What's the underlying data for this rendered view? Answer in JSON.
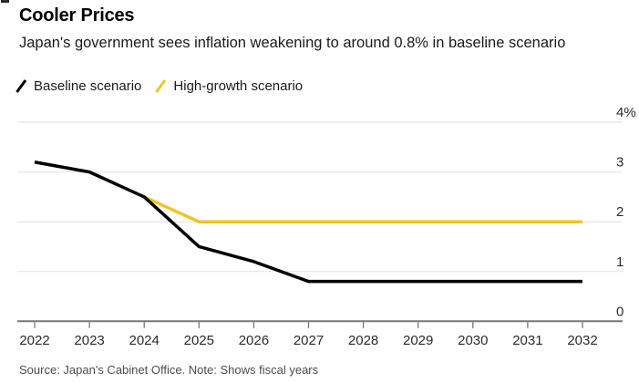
{
  "chart_data": {
    "type": "line",
    "title": "Cooler Prices",
    "subtitle": "Japan's government sees inflation weakening to around 0.8% in baseline scenario",
    "source_note": "Source: Japan's Cabinet Office. Note: Shows fiscal years",
    "unit": "%",
    "grid": "horizontal",
    "legend_position": "top-left",
    "xlim": [
      2022,
      2032
    ],
    "ylim": [
      0,
      4
    ],
    "x_ticks": [
      2022,
      2023,
      2024,
      2025,
      2026,
      2027,
      2028,
      2029,
      2030,
      2031,
      2032
    ],
    "y_ticks": [
      {
        "value": 0,
        "label": "0"
      },
      {
        "value": 1,
        "label": "1"
      },
      {
        "value": 2,
        "label": "2"
      },
      {
        "value": 3,
        "label": "3"
      },
      {
        "value": 4,
        "label": "4%"
      }
    ],
    "series": [
      {
        "id": "baseline",
        "name": "Baseline scenario",
        "color": "#000000",
        "x": [
          2022,
          2023,
          2024,
          2025,
          2026,
          2027,
          2028,
          2029,
          2030,
          2031,
          2032
        ],
        "values": [
          3.2,
          3.0,
          2.5,
          1.5,
          1.2,
          0.8,
          0.8,
          0.8,
          0.8,
          0.8,
          0.8
        ]
      },
      {
        "id": "high-growth",
        "name": "High-growth scenario",
        "color": "#f3c41f",
        "x": [
          2024,
          2025,
          2026,
          2027,
          2028,
          2029,
          2030,
          2031,
          2032
        ],
        "values": [
          2.5,
          2.0,
          2.0,
          2.0,
          2.0,
          2.0,
          2.0,
          2.0,
          2.0
        ]
      }
    ],
    "colors": {
      "gridline": "#e4e4e4",
      "axis": "#767676",
      "tick_label": "#2b2b2b"
    }
  }
}
